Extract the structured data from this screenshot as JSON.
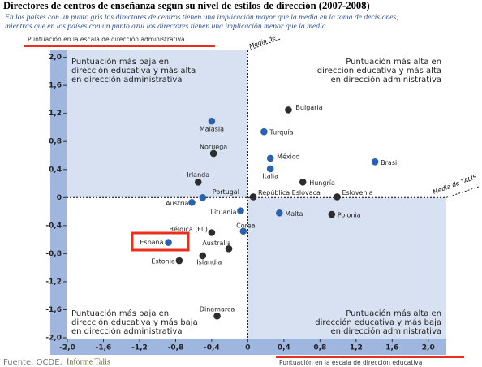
{
  "chart_data": {
    "type": "scatter",
    "title": "Directores de centros de enseñanza según su nivel de estilos de dirección (2007-2008)",
    "subtitle": [
      "En los países con un punto gris los directores de centros tienen una implicación mayor que la media en la toma de decisiones,",
      "mientras que en los países con un punto azul los directores tienen una implicación menor que la media."
    ],
    "ylabel": "Puntuación en la escala de dirección administrativa",
    "xlabel": "Puntuación en la escala de dirección educativa",
    "source": "Fuente: OCDE,",
    "source_report": "Informe Talis",
    "mean_labels": [
      "Media de",
      "Media de TALIS"
    ],
    "quadrants": {
      "top_left": [
        "Puntuación más baja en",
        "dirección educativa y más alta",
        "en dirección administrativa"
      ],
      "top_right": [
        "Puntuación más alta en",
        "dirección educativa y más alta",
        "en dirección administrativa"
      ],
      "bottom_left": [
        "Puntuación más baja en",
        "dirección educativa y más baja",
        "en dirección administrativa"
      ],
      "bottom_right": [
        "Puntuación más alta en",
        "dirección educativa y más baja",
        "en dirección administrativa"
      ]
    },
    "xlim": [
      -2.0,
      2.2
    ],
    "ylim": [
      -2.0,
      2.1
    ],
    "xticks": [
      {
        "value": -2.0,
        "label": "-2,0"
      },
      {
        "value": -1.6,
        "label": "-1,6"
      },
      {
        "value": -1.2,
        "label": "-1,2"
      },
      {
        "value": -0.8,
        "label": "-0,8"
      },
      {
        "value": -0.4,
        "label": "-0,4"
      },
      0,
      {
        "value": 0.4,
        "label": "0,4"
      },
      {
        "value": 0.8,
        "label": "0,8"
      },
      {
        "value": 1.2,
        "label": "1,2"
      },
      {
        "value": 1.6,
        "label": "1,6"
      },
      {
        "value": 2.0,
        "label": "2,0"
      }
    ],
    "yticks": [
      {
        "value": 2.0,
        "label": "2,0"
      },
      {
        "value": 1.6,
        "label": "1,6"
      },
      {
        "value": 1.2,
        "label": "1,2"
      },
      {
        "value": 0.8,
        "label": "0,8"
      },
      {
        "value": 0.4,
        "label": "0,4"
      },
      0,
      {
        "value": -0.4,
        "label": "-0,4"
      },
      {
        "value": -0.8,
        "label": "-0,8"
      },
      {
        "value": -1.2,
        "label": "-1,2"
      },
      {
        "value": -1.6,
        "label": "-1,6"
      },
      {
        "value": -2.0,
        "label": "-2,0"
      }
    ],
    "points": [
      {
        "label": "Bulgaria",
        "x": 0.45,
        "y": 1.25,
        "color": "#2d2d2d"
      },
      {
        "label": "Malasia",
        "x": -0.4,
        "y": 1.09,
        "color": "#2b62b0"
      },
      {
        "label": "Turquía",
        "x": 0.18,
        "y": 0.94,
        "color": "#2b62b0"
      },
      {
        "label": "Noruega",
        "x": -0.38,
        "y": 0.63,
        "color": "#2d2d2d"
      },
      {
        "label": "México",
        "x": 0.25,
        "y": 0.56,
        "color": "#2b62b0"
      },
      {
        "label": "Brasil",
        "x": 1.41,
        "y": 0.51,
        "color": "#2b62b0"
      },
      {
        "label": "Italia",
        "x": 0.25,
        "y": 0.41,
        "color": "#2b62b0"
      },
      {
        "label": "Hungría",
        "x": 0.61,
        "y": 0.22,
        "color": "#2d2d2d"
      },
      {
        "label": "Irlanda",
        "x": -0.55,
        "y": 0.22,
        "color": "#2d2d2d"
      },
      {
        "label": "Portugal",
        "x": -0.5,
        "y": 0.0,
        "color": "#2b62b0"
      },
      {
        "label": "Austria",
        "x": -0.62,
        "y": -0.07,
        "color": "#2b62b0"
      },
      {
        "label": "República Eslovaca",
        "x": 0.06,
        "y": 0.01,
        "color": "#2d2d2d"
      },
      {
        "label": "Eslovenia",
        "x": 0.99,
        "y": 0.01,
        "color": "#2d2d2d"
      },
      {
        "label": "Lituania",
        "x": -0.08,
        "y": -0.19,
        "color": "#2b62b0"
      },
      {
        "label": "Malta",
        "x": 0.35,
        "y": -0.22,
        "color": "#2b62b0"
      },
      {
        "label": "Polonia",
        "x": 0.93,
        "y": -0.24,
        "color": "#2d2d2d"
      },
      {
        "label": "Corea",
        "x": -0.05,
        "y": -0.48,
        "color": "#2b62b0"
      },
      {
        "label": "Bélgica (Fl.)",
        "x": -0.4,
        "y": -0.5,
        "color": "#2d2d2d"
      },
      {
        "label": "Australia",
        "x": -0.21,
        "y": -0.73,
        "color": "#2d2d2d"
      },
      {
        "label": "España",
        "x": -0.88,
        "y": -0.64,
        "color": "#2b62b0"
      },
      {
        "label": "Estonia",
        "x": -0.76,
        "y": -0.9,
        "color": "#2d2d2d"
      },
      {
        "label": "Islandia",
        "x": -0.5,
        "y": -0.83,
        "color": "#2d2d2d"
      },
      {
        "label": "Dinamarca",
        "x": -0.34,
        "y": -1.69,
        "color": "#2d2d2d"
      }
    ]
  }
}
